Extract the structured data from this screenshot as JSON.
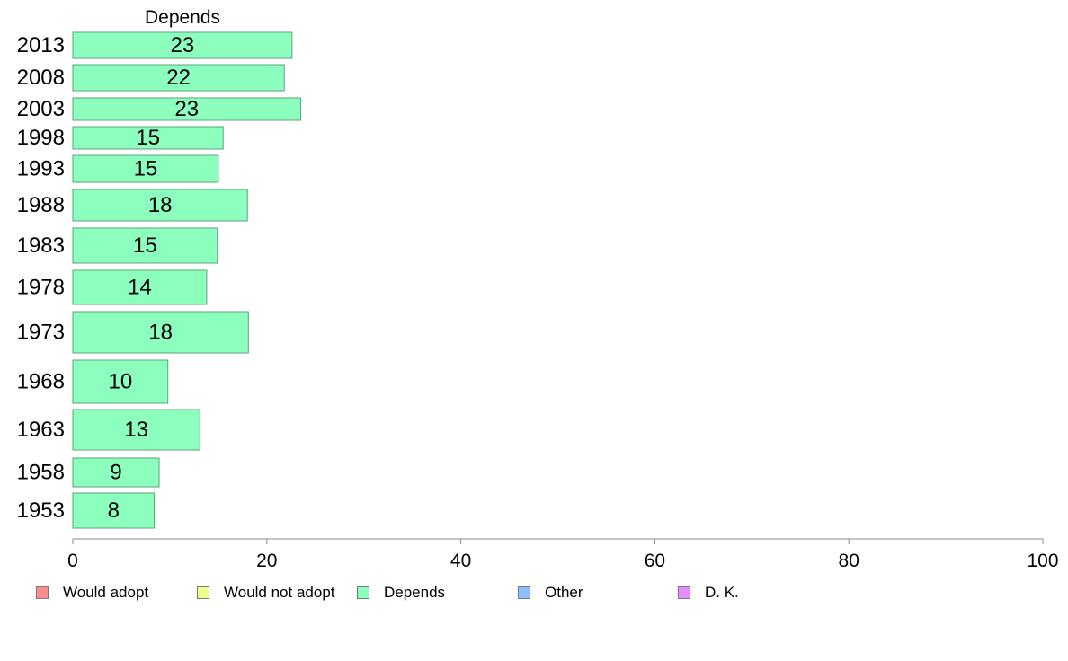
{
  "chart_data": {
    "type": "bar",
    "orientation": "horizontal",
    "series_header": "Depends",
    "categories": [
      "2013",
      "2008",
      "2003",
      "1998",
      "1993",
      "1988",
      "1983",
      "1978",
      "1973",
      "1968",
      "1963",
      "1958",
      "1953"
    ],
    "series": [
      {
        "name": "Depends",
        "values": [
          22.6,
          21.8,
          23.5,
          15.5,
          15.0,
          18.0,
          14.9,
          13.8,
          18.1,
          9.8,
          13.1,
          8.9,
          8.4
        ],
        "labels": [
          "23",
          "22",
          "23",
          "15",
          "15",
          "18",
          "15",
          "14",
          "18",
          "10",
          "13",
          "9",
          "8"
        ]
      }
    ],
    "xlim": [
      0,
      100
    ],
    "x_ticks": [
      "0",
      "20",
      "40",
      "60",
      "80",
      "100"
    ],
    "grid": false,
    "colors": {
      "bar_fill": "#8cffbe",
      "bar_stroke": "#5aa57a",
      "axis": "#888888"
    },
    "legend": {
      "placement": "bottom",
      "items": [
        {
          "label": "Would adopt",
          "color": "#ff8c8c"
        },
        {
          "label": "Would not adopt",
          "color": "#f0ff8c"
        },
        {
          "label": "Depends",
          "color": "#8cffbe"
        },
        {
          "label": "Other",
          "color": "#8cbeff"
        },
        {
          "label": "D. K.",
          "color": "#e88cff"
        }
      ]
    }
  }
}
